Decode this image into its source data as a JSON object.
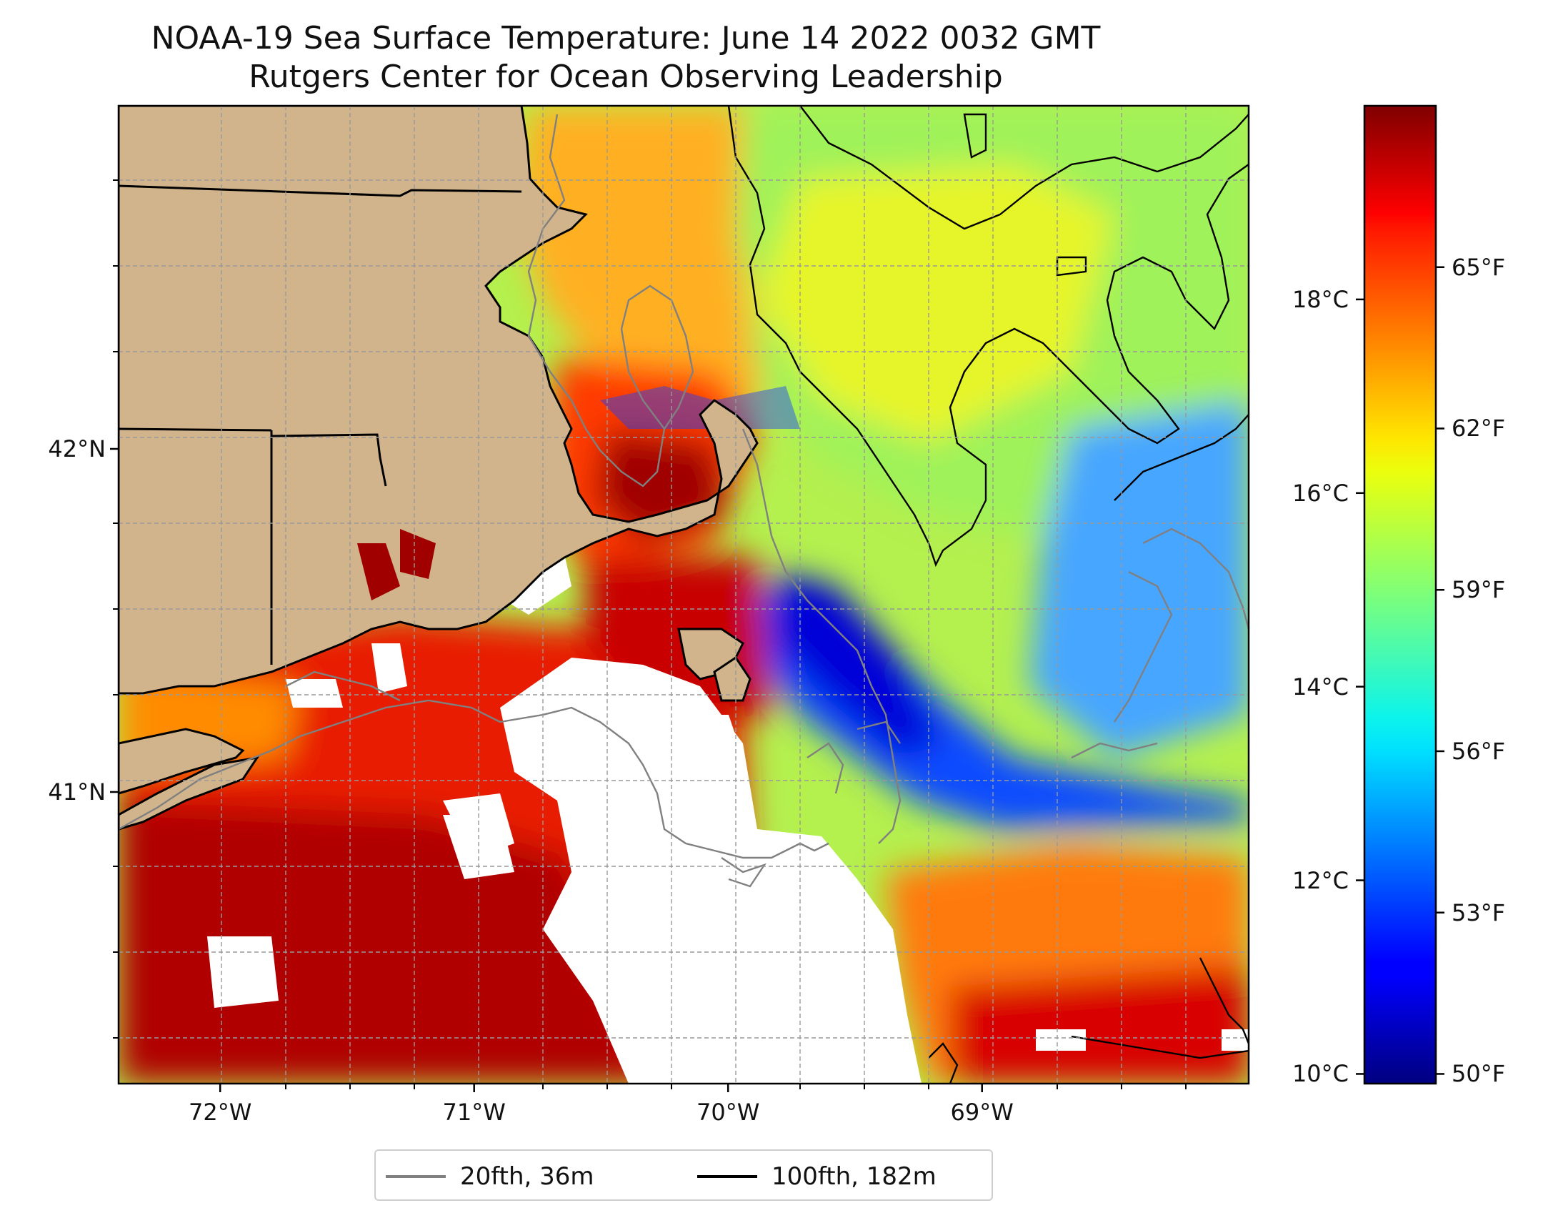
{
  "title": {
    "line1": "NOAA-19 Sea Surface Temperature: June 14 2022 0032 GMT",
    "line2": "Rutgers Center for Ocean Observing Leadership"
  },
  "map": {
    "lon_range": [
      -72.4,
      -67.95
    ],
    "lat_range": [
      40.15,
      43.0
    ],
    "lat_ticks": [
      {
        "value": 42,
        "label": "42°N"
      },
      {
        "value": 41,
        "label": "41°N"
      }
    ],
    "lon_ticks": [
      {
        "value": -72,
        "label": "72°W"
      },
      {
        "value": -71,
        "label": "71°W"
      },
      {
        "value": -70,
        "label": "70°W"
      },
      {
        "value": -69,
        "label": "69°W"
      }
    ],
    "grid": true,
    "land_color": "#d2b48c",
    "nodata_color": "#ffffff"
  },
  "colorbar": {
    "colormap": "jet",
    "celsius_range": [
      9.9,
      20.0
    ],
    "celsius_ticks": [
      {
        "value": 10,
        "label": "10°C"
      },
      {
        "value": 12,
        "label": "12°C"
      },
      {
        "value": 14,
        "label": "14°C"
      },
      {
        "value": 16,
        "label": "16°C"
      },
      {
        "value": 18,
        "label": "18°C"
      }
    ],
    "fahrenheit_ticks": [
      {
        "value": 50,
        "label": "50°F"
      },
      {
        "value": 53,
        "label": "53°F"
      },
      {
        "value": 56,
        "label": "56°F"
      },
      {
        "value": 59,
        "label": "59°F"
      },
      {
        "value": 62,
        "label": "62°F"
      },
      {
        "value": 65,
        "label": "65°F"
      }
    ]
  },
  "legend": {
    "items": [
      {
        "label": "20fth, 36m",
        "color": "#808080"
      },
      {
        "label": "100fth, 182m",
        "color": "#000000"
      }
    ]
  }
}
